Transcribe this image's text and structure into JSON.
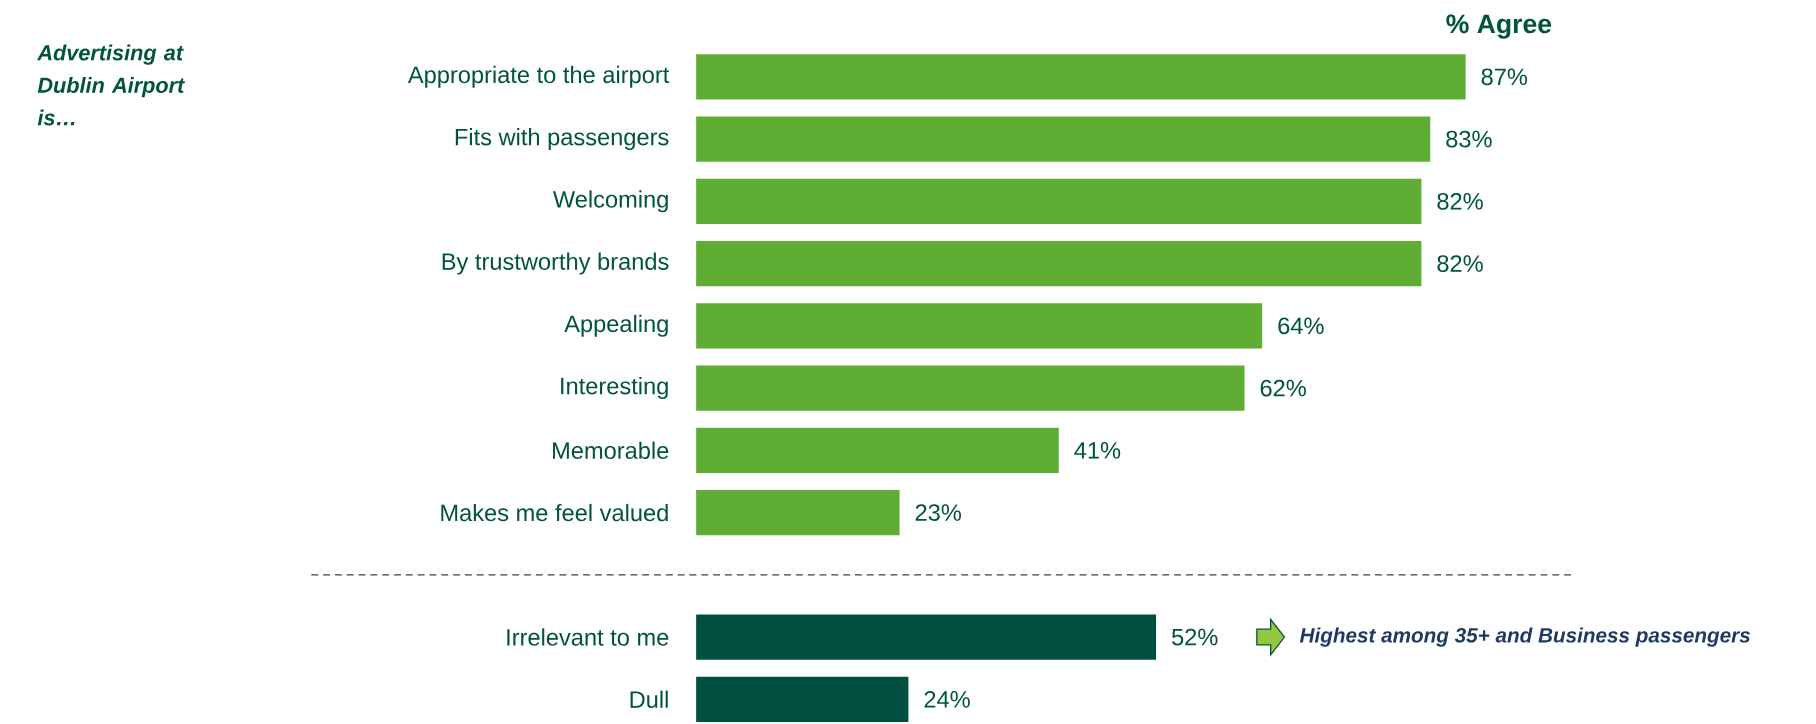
{
  "chart_data": {
    "type": "bar",
    "orientation": "horizontal",
    "title": "% Agree",
    "categories": [
      "Appropriate to the airport",
      "Fits with passengers",
      "Welcoming",
      "By trustworthy brands",
      "Appealing",
      "Interesting",
      "Memorable",
      "Makes me feel valued",
      "Irrelevant to me",
      "Dull"
    ],
    "values": [
      87,
      83,
      82,
      82,
      64,
      62,
      41,
      23,
      52,
      24
    ],
    "value_labels": [
      "87%",
      "83%",
      "82%",
      "82%",
      "64%",
      "62%",
      "41%",
      "23%",
      "52%",
      "24%"
    ],
    "colors": [
      "#5fad34",
      "#5fad34",
      "#5fad34",
      "#5fad34",
      "#5fad34",
      "#5fad34",
      "#5fad34",
      "#5fad34",
      "#004f40",
      "#004f40"
    ],
    "annotations": [
      "Advertising at Dublin Airport is…",
      "Highest among 35+ and Business passengers"
    ]
  }
}
